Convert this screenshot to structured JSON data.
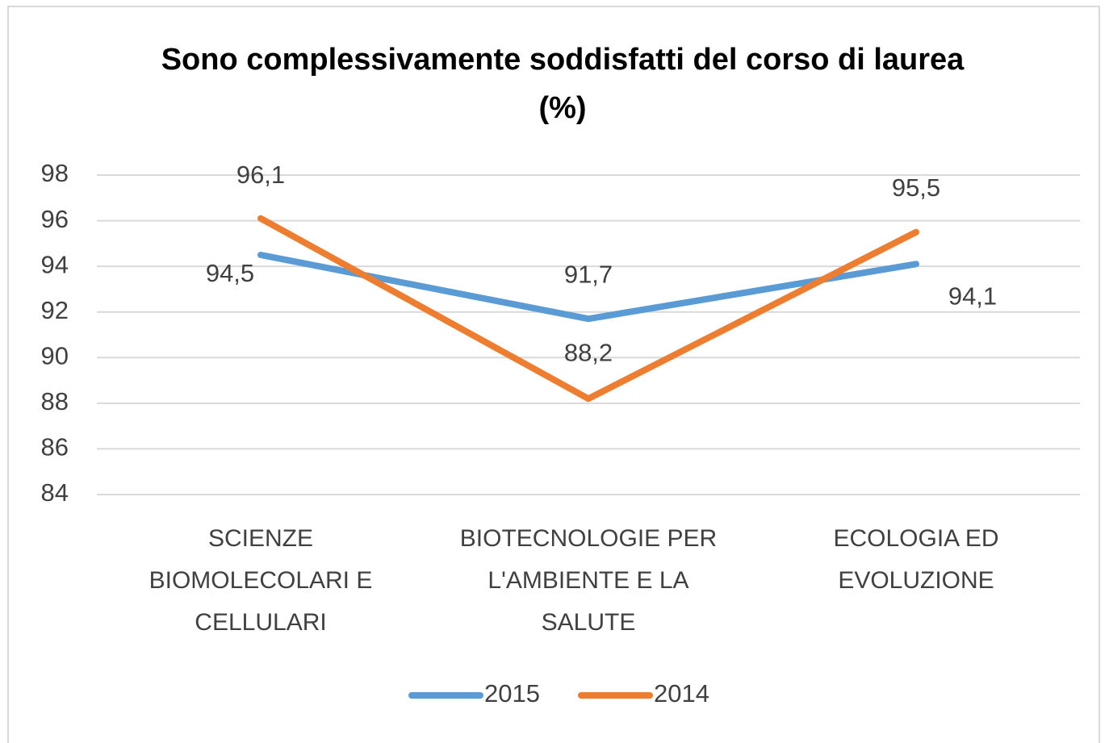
{
  "chart_data": {
    "type": "line",
    "title": "Sono complessivamente soddisfatti del corso di laurea (%)",
    "categories": [
      "SCIENZE BIOMOLECOLARI E CELLULARI",
      "BIOTECNOLOGIE PER L'AMBIENTE E LA SALUTE",
      "ECOLOGIA ED EVOLUZIONE"
    ],
    "series": [
      {
        "name": "2015",
        "color": "#5b9bd5",
        "values": [
          94.5,
          91.7,
          94.1
        ],
        "value_labels": [
          "94,5",
          "91,7",
          "94,1"
        ]
      },
      {
        "name": "2014",
        "color": "#ed7d31",
        "values": [
          96.1,
          88.2,
          95.5
        ],
        "value_labels": [
          "96,1",
          "88,2",
          "95,5"
        ]
      }
    ],
    "ylim": [
      84,
      98
    ],
    "yticks": [
      84,
      86,
      88,
      90,
      92,
      94,
      96,
      98
    ],
    "grid": true,
    "legend": "bottom"
  }
}
